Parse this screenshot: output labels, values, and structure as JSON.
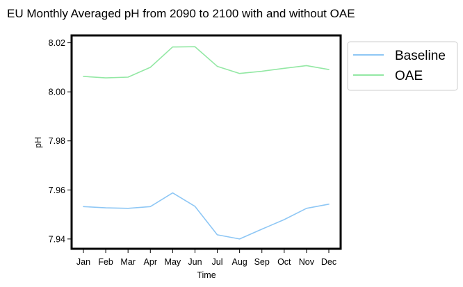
{
  "chart_data": {
    "type": "line",
    "title": "EU Monthly Averaged pH from 2090 to 2100 with and without OAE",
    "xlabel": "Time",
    "ylabel": "pH",
    "categories": [
      "Jan",
      "Feb",
      "Mar",
      "Apr",
      "May",
      "Jun",
      "Jul",
      "Aug",
      "Sep",
      "Oct",
      "Nov",
      "Dec"
    ],
    "ylim": [
      7.936,
      8.023
    ],
    "yticks": [
      7.94,
      7.96,
      7.98,
      8.0,
      8.02
    ],
    "ytick_labels": [
      "7.94",
      "7.96",
      "7.98",
      "8.00",
      "8.02"
    ],
    "grid": false,
    "legend_position": "outside-top-right",
    "series": [
      {
        "name": "Baseline",
        "color": "#8ec7f5",
        "values": [
          7.9532,
          7.9527,
          7.9525,
          7.9532,
          7.9588,
          7.9533,
          7.9417,
          7.94,
          7.944,
          7.9479,
          7.9525,
          7.9542
        ]
      },
      {
        "name": "OAE",
        "color": "#93e8a4",
        "values": [
          8.0063,
          8.0057,
          8.006,
          8.01,
          8.0183,
          8.0184,
          8.0104,
          8.0075,
          8.0084,
          8.0096,
          8.0107,
          8.0091
        ]
      }
    ]
  }
}
